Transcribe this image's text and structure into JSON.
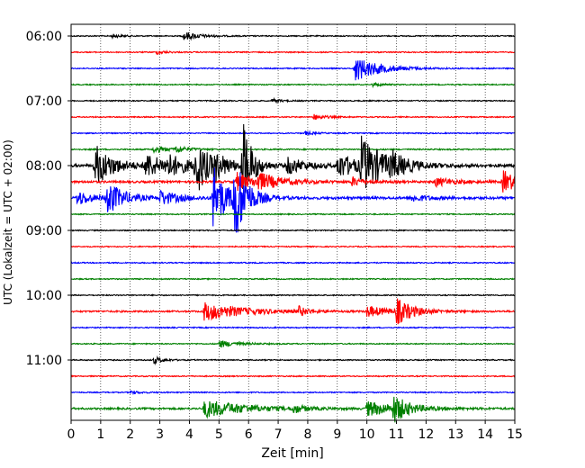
{
  "chart_data": {
    "type": "line",
    "title": "",
    "xlabel": "Zeit  [min]",
    "ylabel": "UTC (Lokalzeit = UTC + 02:00)",
    "xlim": [
      0,
      15
    ],
    "x_ticks": [
      "0",
      "1",
      "2",
      "3",
      "4",
      "5",
      "6",
      "7",
      "8",
      "9",
      "10",
      "11",
      "12",
      "13",
      "14",
      "15"
    ],
    "y_ticks": [
      "06:00",
      "07:00",
      "08:00",
      "09:00",
      "10:00",
      "11:00"
    ],
    "grid": "vertical dotted",
    "traces_per_hour": 4,
    "trace_colors": [
      "#000000",
      "#ff0000",
      "#0000ff",
      "#008000"
    ],
    "traces": [
      {
        "start": "06:00",
        "color": "#000000",
        "base_noise": 0.6,
        "events": [
          {
            "t": 3.8,
            "amp": 5,
            "dur": 0.5
          },
          {
            "t": 1.4,
            "amp": 2,
            "dur": 0.3
          }
        ]
      },
      {
        "start": "06:15",
        "color": "#ff0000",
        "base_noise": 0.6,
        "events": [
          {
            "t": 2.9,
            "amp": 2,
            "dur": 0.3
          }
        ]
      },
      {
        "start": "06:30",
        "color": "#0000ff",
        "base_noise": 0.6,
        "events": [
          {
            "t": 9.6,
            "amp": 14,
            "dur": 0.8
          }
        ]
      },
      {
        "start": "06:45",
        "color": "#008000",
        "base_noise": 0.6,
        "events": [
          {
            "t": 10.2,
            "amp": 2,
            "dur": 0.3
          }
        ]
      },
      {
        "start": "07:00",
        "color": "#000000",
        "base_noise": 0.6,
        "events": [
          {
            "t": 6.8,
            "amp": 2,
            "dur": 0.3
          }
        ]
      },
      {
        "start": "07:15",
        "color": "#ff0000",
        "base_noise": 0.6,
        "events": [
          {
            "t": 8.2,
            "amp": 3,
            "dur": 0.4
          }
        ]
      },
      {
        "start": "07:30",
        "color": "#0000ff",
        "base_noise": 0.6,
        "events": [
          {
            "t": 7.9,
            "amp": 2,
            "dur": 0.3
          }
        ]
      },
      {
        "start": "07:45",
        "color": "#008000",
        "base_noise": 0.7,
        "events": [
          {
            "t": 2.8,
            "amp": 4,
            "dur": 0.4
          },
          {
            "t": 3.5,
            "amp": 4,
            "dur": 0.4
          }
        ]
      },
      {
        "start": "08:00",
        "color": "#000000",
        "base_noise": 1.5,
        "events": [
          {
            "t": 0.8,
            "amp": 24,
            "dur": 0.6
          },
          {
            "t": 2.5,
            "amp": 14,
            "dur": 0.6
          },
          {
            "t": 3.2,
            "amp": 10,
            "dur": 0.8
          },
          {
            "t": 4.2,
            "amp": 32,
            "dur": 0.4
          },
          {
            "t": 4.8,
            "amp": 12,
            "dur": 0.5
          },
          {
            "t": 5.8,
            "amp": 50,
            "dur": 0.3
          },
          {
            "t": 7.3,
            "amp": 10,
            "dur": 0.6
          },
          {
            "t": 9.0,
            "amp": 14,
            "dur": 0.7
          },
          {
            "t": 9.8,
            "amp": 28,
            "dur": 0.8
          },
          {
            "t": 10.8,
            "amp": 10,
            "dur": 0.4
          }
        ]
      },
      {
        "start": "08:15",
        "color": "#ff0000",
        "base_noise": 1.2,
        "events": [
          {
            "t": 5.6,
            "amp": 10,
            "dur": 0.6
          },
          {
            "t": 6.3,
            "amp": 8,
            "dur": 0.8
          },
          {
            "t": 9.5,
            "amp": 5,
            "dur": 0.4
          },
          {
            "t": 12.3,
            "amp": 5,
            "dur": 0.6
          },
          {
            "t": 14.6,
            "amp": 13,
            "dur": 0.5
          }
        ]
      },
      {
        "start": "08:30",
        "color": "#0000ff",
        "base_noise": 1.4,
        "events": [
          {
            "t": 0.2,
            "amp": 8,
            "dur": 0.5
          },
          {
            "t": 1.2,
            "amp": 20,
            "dur": 0.5
          },
          {
            "t": 3.0,
            "amp": 8,
            "dur": 0.6
          },
          {
            "t": 4.8,
            "amp": 40,
            "dur": 0.4
          },
          {
            "t": 5.5,
            "amp": 48,
            "dur": 0.4
          },
          {
            "t": 11.5,
            "amp": 4,
            "dur": 0.5
          }
        ]
      },
      {
        "start": "08:45",
        "color": "#008000",
        "base_noise": 0.6,
        "events": []
      },
      {
        "start": "09:00",
        "color": "#000000",
        "base_noise": 0.6,
        "events": []
      },
      {
        "start": "09:15",
        "color": "#ff0000",
        "base_noise": 0.6,
        "events": []
      },
      {
        "start": "09:30",
        "color": "#0000ff",
        "base_noise": 0.6,
        "events": []
      },
      {
        "start": "09:45",
        "color": "#008000",
        "base_noise": 0.6,
        "events": []
      },
      {
        "start": "10:00",
        "color": "#000000",
        "base_noise": 0.6,
        "events": []
      },
      {
        "start": "10:15",
        "color": "#ff0000",
        "base_noise": 0.9,
        "events": [
          {
            "t": 4.5,
            "amp": 10,
            "dur": 1.3
          },
          {
            "t": 7.7,
            "amp": 5,
            "dur": 0.3
          },
          {
            "t": 10.0,
            "amp": 6,
            "dur": 0.8
          },
          {
            "t": 11.0,
            "amp": 14,
            "dur": 0.5
          }
        ]
      },
      {
        "start": "10:30",
        "color": "#0000ff",
        "base_noise": 0.6,
        "events": []
      },
      {
        "start": "10:45",
        "color": "#008000",
        "base_noise": 0.6,
        "events": [
          {
            "t": 5.0,
            "amp": 4,
            "dur": 0.6
          }
        ]
      },
      {
        "start": "11:00",
        "color": "#000000",
        "base_noise": 0.6,
        "events": [
          {
            "t": 2.8,
            "amp": 4,
            "dur": 0.3
          }
        ]
      },
      {
        "start": "11:15",
        "color": "#ff0000",
        "base_noise": 0.6,
        "events": []
      },
      {
        "start": "11:30",
        "color": "#0000ff",
        "base_noise": 0.6,
        "events": [
          {
            "t": 2.0,
            "amp": 2,
            "dur": 0.3
          }
        ]
      },
      {
        "start": "11:45",
        "color": "#008000",
        "base_noise": 1.0,
        "events": [
          {
            "t": 4.5,
            "amp": 10,
            "dur": 1.4
          },
          {
            "t": 7.5,
            "amp": 5,
            "dur": 0.3
          },
          {
            "t": 10.0,
            "amp": 8,
            "dur": 1.1
          },
          {
            "t": 10.9,
            "amp": 14,
            "dur": 0.4
          }
        ]
      }
    ]
  }
}
